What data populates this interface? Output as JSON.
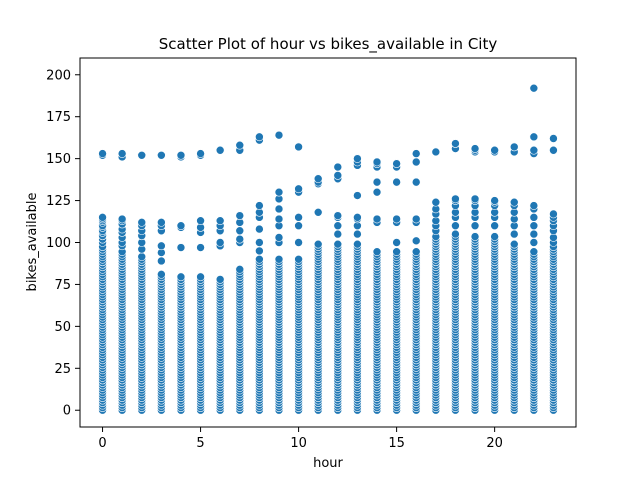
{
  "chart_data": {
    "type": "scatter",
    "title": "Scatter Plot of hour vs bikes_available in City",
    "xlabel": "hour",
    "ylabel": "bikes_available",
    "xlim": [
      -1.15,
      24.15
    ],
    "ylim": [
      -10,
      210
    ],
    "xticks": [
      0,
      5,
      10,
      15,
      20
    ],
    "yticks": [
      0,
      25,
      50,
      75,
      100,
      125,
      150,
      175,
      200
    ],
    "grid": false,
    "legend": "none",
    "marker_color": "#1f77b4",
    "marker_edge_color": "#ffffff",
    "columns": [
      {
        "hour": 0,
        "dense_max": 98,
        "extra": [
          100,
          102,
          104,
          106,
          107,
          109,
          110,
          112,
          113,
          114,
          115,
          152,
          153
        ]
      },
      {
        "hour": 1,
        "dense_max": 95,
        "extra": [
          98,
          100,
          103,
          106,
          108,
          111,
          113,
          114,
          151,
          153
        ]
      },
      {
        "hour": 2,
        "dense_max": 92,
        "extra": [
          96,
          100,
          104,
          107,
          110,
          112,
          152
        ]
      },
      {
        "hour": 3,
        "dense_max": 82,
        "extra": [
          89,
          94,
          98,
          107,
          110,
          112,
          152
        ]
      },
      {
        "hour": 4,
        "dense_max": 80,
        "extra": [
          97,
          109,
          110,
          151,
          152
        ]
      },
      {
        "hour": 5,
        "dense_max": 80,
        "extra": [
          97,
          106,
          109,
          113,
          152,
          153
        ]
      },
      {
        "hour": 6,
        "dense_max": 79,
        "extra": [
          98,
          100,
          107,
          110,
          113,
          155
        ]
      },
      {
        "hour": 7,
        "dense_max": 85,
        "extra": [
          100,
          102,
          107,
          112,
          116,
          155,
          158
        ]
      },
      {
        "hour": 8,
        "dense_max": 90,
        "extra": [
          95,
          100,
          108,
          115,
          118,
          122,
          161,
          163
        ]
      },
      {
        "hour": 9,
        "dense_max": 90,
        "extra": [
          100,
          103,
          110,
          114,
          120,
          126,
          130,
          164
        ]
      },
      {
        "hour": 10,
        "dense_max": 90,
        "extra": [
          100,
          110,
          115,
          130,
          132,
          157
        ]
      },
      {
        "hour": 11,
        "dense_max": 99,
        "extra": [
          118,
          135,
          136,
          138
        ]
      },
      {
        "hour": 12,
        "dense_max": 100,
        "extra": [
          105,
          110,
          115,
          116,
          138,
          140,
          145
        ]
      },
      {
        "hour": 13,
        "dense_max": 100,
        "extra": [
          105,
          110,
          114,
          115,
          128,
          146,
          148,
          150
        ]
      },
      {
        "hour": 14,
        "dense_max": 95,
        "extra": [
          112,
          114,
          130,
          136,
          145,
          147,
          148
        ]
      },
      {
        "hour": 15,
        "dense_max": 95,
        "extra": [
          100,
          112,
          114,
          136,
          145,
          147
        ]
      },
      {
        "hour": 16,
        "dense_max": 95,
        "extra": [
          101,
          112,
          114,
          136,
          148,
          153
        ]
      },
      {
        "hour": 17,
        "dense_max": 104,
        "extra": [
          107,
          110,
          113,
          117,
          120,
          124,
          154
        ]
      },
      {
        "hour": 18,
        "dense_max": 105,
        "extra": [
          110,
          115,
          118,
          122,
          125,
          126,
          156,
          159
        ]
      },
      {
        "hour": 19,
        "dense_max": 104,
        "extra": [
          110,
          115,
          118,
          122,
          125,
          126,
          154,
          155,
          156
        ]
      },
      {
        "hour": 20,
        "dense_max": 104,
        "extra": [
          110,
          115,
          118,
          122,
          124,
          125,
          154,
          155
        ]
      },
      {
        "hour": 21,
        "dense_max": 100,
        "extra": [
          105,
          110,
          114,
          118,
          122,
          124,
          154,
          157
        ]
      },
      {
        "hour": 22,
        "dense_max": 95,
        "extra": [
          100,
          105,
          110,
          115,
          120,
          122,
          153,
          155,
          163,
          192
        ]
      },
      {
        "hour": 23,
        "dense_max": 98,
        "extra": [
          100,
          103,
          107,
          110,
          113,
          115,
          117,
          155,
          162
        ]
      }
    ]
  }
}
